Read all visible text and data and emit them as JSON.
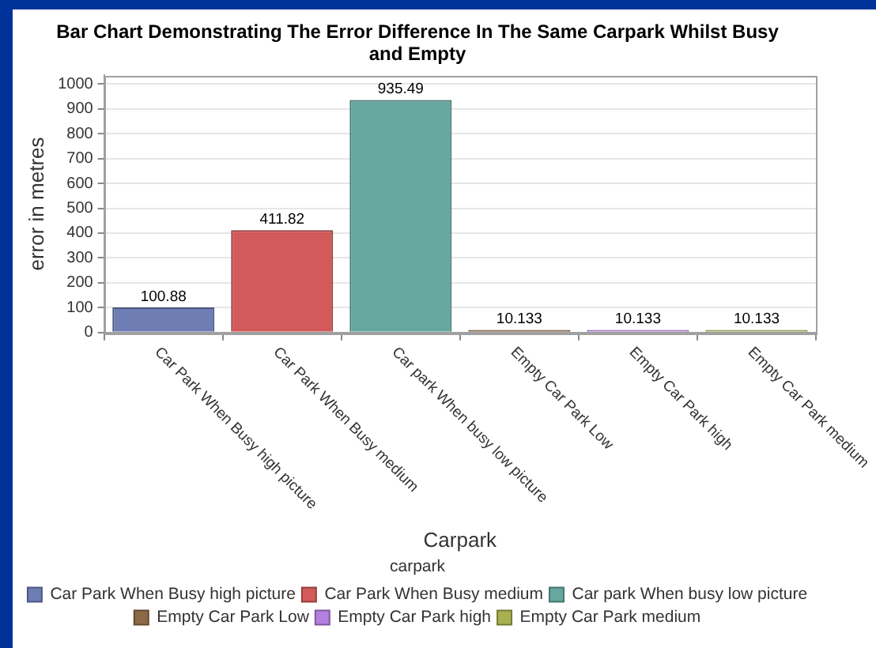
{
  "chart_data": {
    "type": "bar",
    "title": "Bar Chart Demonstrating The Error Difference In The Same Carpark Whilst Busy and Empty",
    "xlabel": "Carpark",
    "ylabel": "error in metres",
    "legend_title": "carpark",
    "categories": [
      "Car Park When Busy high picture",
      "Car Park When Busy medium",
      "Car park When busy low picture",
      "Empty Car Park Low",
      "Empty Car Park high",
      "Empty Car Park medium"
    ],
    "series": [
      {
        "name": "Car Park When Busy high picture",
        "color": "#6f7db5",
        "values": [
          100.88,
          null,
          null,
          null,
          null,
          null
        ]
      },
      {
        "name": "Car Park When Busy medium",
        "color": "#d35a5a",
        "values": [
          null,
          411.82,
          null,
          null,
          null,
          null
        ]
      },
      {
        "name": "Car park When busy low picture",
        "color": "#66a7a0",
        "values": [
          null,
          null,
          935.49,
          null,
          null,
          null
        ]
      },
      {
        "name": "Empty Car Park Low",
        "color": "#8c6a47",
        "values": [
          null,
          null,
          null,
          10.133,
          null,
          null
        ]
      },
      {
        "name": "Empty Car Park high",
        "color": "#b47fe0",
        "values": [
          null,
          null,
          null,
          null,
          10.133,
          null
        ]
      },
      {
        "name": "Empty Car Park medium",
        "color": "#a8b050",
        "values": [
          null,
          null,
          null,
          null,
          null,
          10.133
        ]
      }
    ],
    "ylim": [
      0,
      1035
    ],
    "yticks": [
      0,
      100,
      200,
      300,
      400,
      500,
      600,
      700,
      800,
      900,
      1000
    ],
    "grid": "y",
    "legend": "bottom",
    "data_labels": true
  }
}
